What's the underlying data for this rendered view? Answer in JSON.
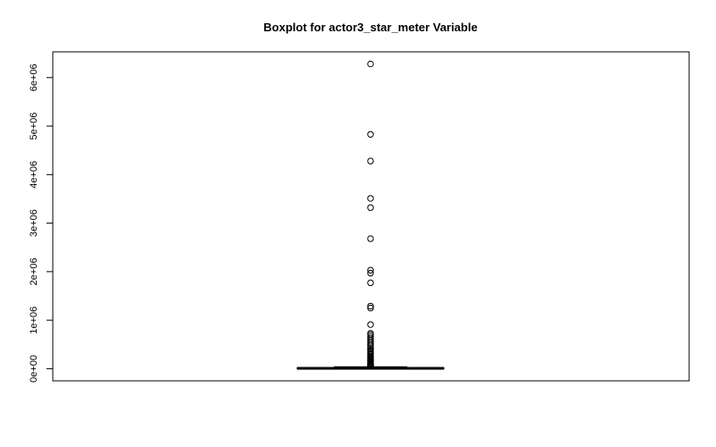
{
  "chart_data": {
    "type": "boxplot",
    "title": "Boxplot for actor3_star_meter Variable",
    "xlabel": "",
    "ylabel": "",
    "ylim": [
      -250000,
      6530000
    ],
    "y_ticks": [
      {
        "value": 0,
        "label": "0e+00"
      },
      {
        "value": 1000000,
        "label": "1e+06"
      },
      {
        "value": 2000000,
        "label": "2e+06"
      },
      {
        "value": 3000000,
        "label": "3e+06"
      },
      {
        "value": 4000000,
        "label": "4e+06"
      },
      {
        "value": 5000000,
        "label": "5e+06"
      },
      {
        "value": 6000000,
        "label": "6e+06"
      }
    ],
    "box": {
      "min": 0,
      "q1": 2000,
      "median": 8000,
      "q3": 20000,
      "max": 40000
    },
    "outliers": [
      6280000,
      4830000,
      4280000,
      3510000,
      3320000,
      2680000,
      2030000,
      1970000,
      1770000,
      1290000,
      1250000,
      910000,
      730000,
      700000,
      660000,
      620000,
      580000,
      540000,
      500000,
      470000,
      430000,
      400000,
      370000,
      340000,
      310000,
      290000,
      260000,
      240000,
      220000,
      200000,
      180000,
      160000,
      140000,
      120000,
      100000,
      90000,
      80000,
      70000,
      60000,
      50000
    ],
    "grid": false,
    "legend": "none"
  }
}
